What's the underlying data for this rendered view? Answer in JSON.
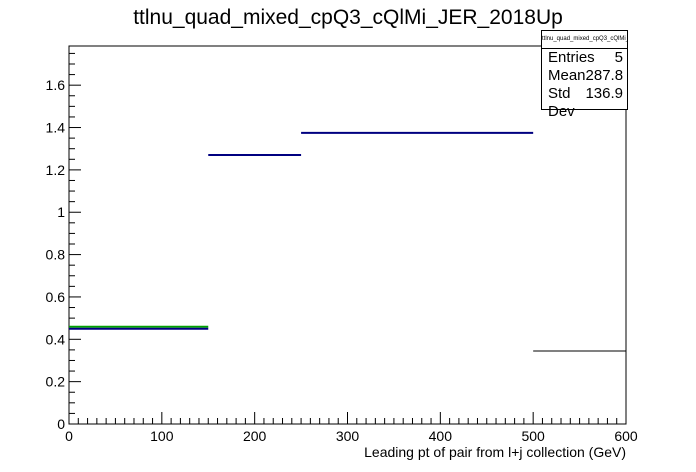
{
  "chart_data": {
    "type": "histogram",
    "title": "ttlnu_quad_mixed_cpQ3_cQlMi_JER_2018Up",
    "xlabel": "Leading pt of pair from l+j collection (GeV)",
    "ylabel": "",
    "xlim": [
      0,
      600
    ],
    "ylim": [
      0,
      1.785
    ],
    "x_ticks": [
      0,
      100,
      200,
      300,
      400,
      500,
      600
    ],
    "y_ticks": [
      0,
      0.2,
      0.4,
      0.6,
      0.8,
      1,
      1.2,
      1.4,
      1.6
    ],
    "grid": false,
    "bins": [
      {
        "low": 0,
        "high": 150,
        "value": 0.45
      },
      {
        "low": 150,
        "high": 250,
        "value": 1.27
      },
      {
        "low": 250,
        "high": 500,
        "value": 1.375
      },
      {
        "low": 500,
        "high": 600,
        "value": 0.345
      }
    ],
    "series_colors": {
      "primary": "#000080",
      "secondary": "#00a000",
      "overflow": "#000000"
    },
    "stats": {
      "name": "ttlnu_quad_mixed_cpQ3_cQlMi_JER_2018Up",
      "entries_label": "Entries",
      "entries": "5",
      "mean_label": "Mean",
      "mean": "287.8",
      "stddev_label": "Std Dev",
      "stddev": "136.9"
    }
  }
}
